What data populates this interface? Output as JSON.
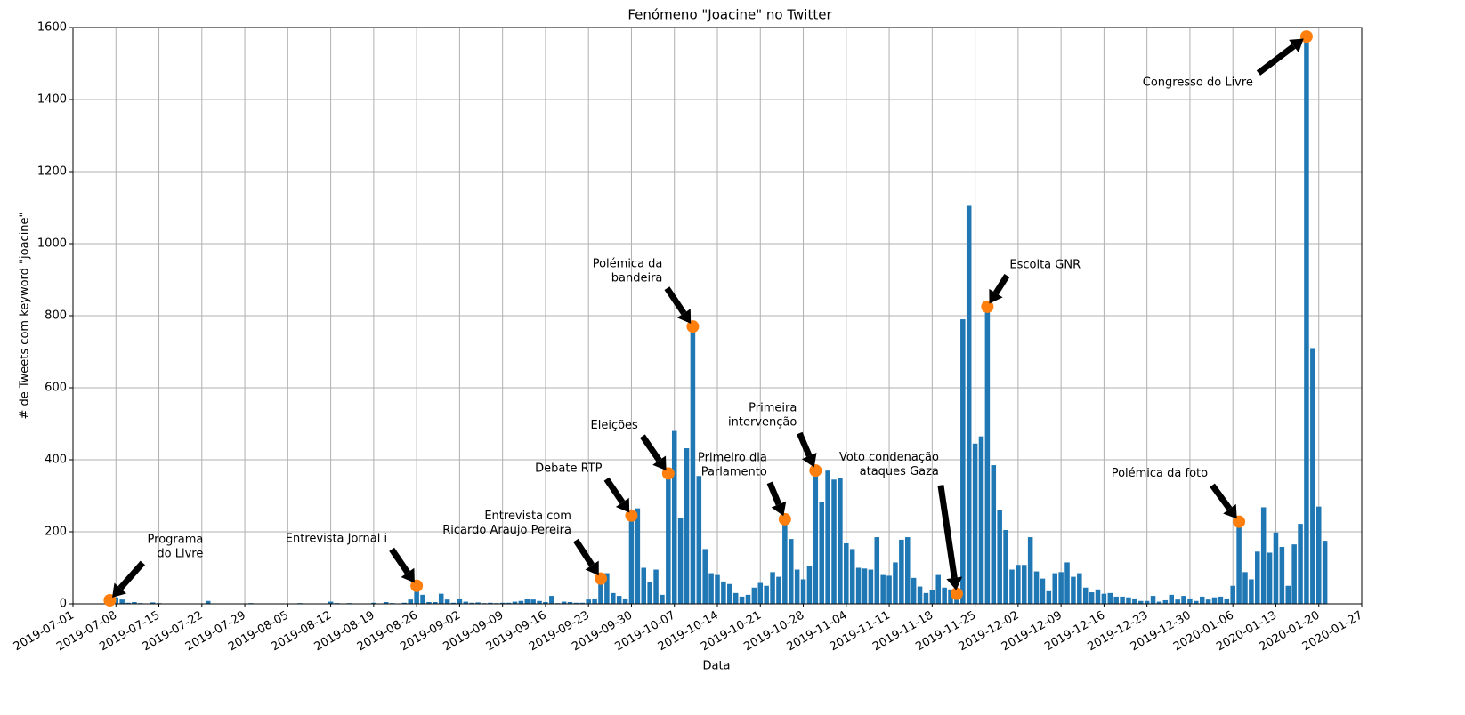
{
  "chart_data": {
    "type": "bar",
    "title": "Fenómeno \"Joacine\" no Twitter",
    "xlabel": "Data",
    "ylabel": "# de Tweets com keyword \"joacine\"",
    "color": "#1f77b4",
    "grid": true,
    "xlim": [
      "2019-07-01",
      "2020-01-27"
    ],
    "xticks": [
      "2019-07-01",
      "2019-07-08",
      "2019-07-15",
      "2019-07-22",
      "2019-07-29",
      "2019-08-05",
      "2019-08-12",
      "2019-08-19",
      "2019-08-26",
      "2019-09-02",
      "2019-09-09",
      "2019-09-16",
      "2019-09-23",
      "2019-09-30",
      "2019-10-07",
      "2019-10-14",
      "2019-10-21",
      "2019-10-28",
      "2019-11-04",
      "2019-11-11",
      "2019-11-18",
      "2019-11-25",
      "2019-12-02",
      "2019-12-09",
      "2019-12-16",
      "2019-12-23",
      "2019-12-30",
      "2020-01-06",
      "2020-01-13",
      "2020-01-20",
      "2020-01-27"
    ],
    "ylim": [
      0,
      1600
    ],
    "yticks": [
      0,
      200,
      400,
      600,
      800,
      1000,
      1200,
      1400,
      1600
    ],
    "x": [
      "2019-07-07",
      "2019-07-08",
      "2019-07-09",
      "2019-07-10",
      "2019-07-11",
      "2019-07-12",
      "2019-07-13",
      "2019-07-14",
      "2019-07-15",
      "2019-07-16",
      "2019-07-17",
      "2019-07-18",
      "2019-07-19",
      "2019-07-20",
      "2019-07-21",
      "2019-07-22",
      "2019-07-23",
      "2019-07-24",
      "2019-07-25",
      "2019-07-26",
      "2019-07-27",
      "2019-07-28",
      "2019-07-29",
      "2019-07-30",
      "2019-07-31",
      "2019-08-01",
      "2019-08-02",
      "2019-08-03",
      "2019-08-04",
      "2019-08-05",
      "2019-08-06",
      "2019-08-07",
      "2019-08-08",
      "2019-08-09",
      "2019-08-10",
      "2019-08-11",
      "2019-08-12",
      "2019-08-13",
      "2019-08-14",
      "2019-08-15",
      "2019-08-16",
      "2019-08-17",
      "2019-08-18",
      "2019-08-19",
      "2019-08-20",
      "2019-08-21",
      "2019-08-22",
      "2019-08-23",
      "2019-08-24",
      "2019-08-25",
      "2019-08-26",
      "2019-08-27",
      "2019-08-28",
      "2019-08-29",
      "2019-08-30",
      "2019-08-31",
      "2019-09-01",
      "2019-09-02",
      "2019-09-03",
      "2019-09-04",
      "2019-09-05",
      "2019-09-06",
      "2019-09-07",
      "2019-09-08",
      "2019-09-09",
      "2019-09-10",
      "2019-09-11",
      "2019-09-12",
      "2019-09-13",
      "2019-09-14",
      "2019-09-15",
      "2019-09-16",
      "2019-09-17",
      "2019-09-18",
      "2019-09-19",
      "2019-09-20",
      "2019-09-21",
      "2019-09-22",
      "2019-09-23",
      "2019-09-24",
      "2019-09-25",
      "2019-09-26",
      "2019-09-27",
      "2019-09-28",
      "2019-09-29",
      "2019-09-30",
      "2019-10-01",
      "2019-10-02",
      "2019-10-03",
      "2019-10-04",
      "2019-10-05",
      "2019-10-06",
      "2019-10-07",
      "2019-10-08",
      "2019-10-09",
      "2019-10-10",
      "2019-10-11",
      "2019-10-12",
      "2019-10-13",
      "2019-10-14",
      "2019-10-15",
      "2019-10-16",
      "2019-10-17",
      "2019-10-18",
      "2019-10-19",
      "2019-10-20",
      "2019-10-21",
      "2019-10-22",
      "2019-10-23",
      "2019-10-24",
      "2019-10-25",
      "2019-10-26",
      "2019-10-27",
      "2019-10-28",
      "2019-10-29",
      "2019-10-30",
      "2019-10-31",
      "2019-11-01",
      "2019-11-02",
      "2019-11-03",
      "2019-11-04",
      "2019-11-05",
      "2019-11-06",
      "2019-11-07",
      "2019-11-08",
      "2019-11-09",
      "2019-11-10",
      "2019-11-11",
      "2019-11-12",
      "2019-11-13",
      "2019-11-14",
      "2019-11-15",
      "2019-11-16",
      "2019-11-17",
      "2019-11-18",
      "2019-11-19",
      "2019-11-20",
      "2019-11-21",
      "2019-11-22",
      "2019-11-23",
      "2019-11-24",
      "2019-11-25",
      "2019-11-26",
      "2019-11-27",
      "2019-11-28",
      "2019-11-29",
      "2019-11-30",
      "2019-12-01",
      "2019-12-02",
      "2019-12-03",
      "2019-12-04",
      "2019-12-05",
      "2019-12-06",
      "2019-12-07",
      "2019-12-08",
      "2019-12-09",
      "2019-12-10",
      "2019-12-11",
      "2019-12-12",
      "2019-12-13",
      "2019-12-14",
      "2019-12-15",
      "2019-12-16",
      "2019-12-17",
      "2019-12-18",
      "2019-12-19",
      "2019-12-20",
      "2019-12-21",
      "2019-12-22",
      "2019-12-23",
      "2019-12-24",
      "2019-12-25",
      "2019-12-26",
      "2019-12-27",
      "2019-12-28",
      "2019-12-29",
      "2019-12-30",
      "2019-12-31",
      "2020-01-01",
      "2020-01-02",
      "2020-01-03",
      "2020-01-04",
      "2020-01-05",
      "2020-01-06",
      "2020-01-07",
      "2020-01-08",
      "2020-01-09",
      "2020-01-10",
      "2020-01-11",
      "2020-01-12",
      "2020-01-13",
      "2020-01-14",
      "2020-01-15",
      "2020-01-16",
      "2020-01-17",
      "2020-01-18",
      "2020-01-19",
      "2020-01-20",
      "2020-01-21"
    ],
    "values": [
      10,
      18,
      12,
      3,
      5,
      2,
      1,
      4,
      2,
      1,
      1,
      0,
      1,
      1,
      0,
      0,
      8,
      1,
      0,
      0,
      1,
      0,
      0,
      2,
      0,
      0,
      0,
      1,
      0,
      0,
      1,
      2,
      1,
      0,
      0,
      0,
      6,
      2,
      1,
      2,
      1,
      0,
      1,
      3,
      1,
      5,
      2,
      1,
      3,
      12,
      50,
      25,
      5,
      5,
      28,
      12,
      3,
      15,
      6,
      3,
      4,
      2,
      3,
      2,
      3,
      3,
      6,
      8,
      14,
      12,
      8,
      5,
      22,
      2,
      6,
      5,
      3,
      3,
      12,
      15,
      70,
      85,
      30,
      22,
      15,
      245,
      265,
      100,
      60,
      95,
      25,
      362,
      480,
      237,
      432,
      770,
      355,
      152,
      85,
      80,
      62,
      55,
      30,
      20,
      25,
      45,
      58,
      50,
      88,
      75,
      235,
      180,
      95,
      68,
      105,
      370,
      282,
      370,
      345,
      350,
      168,
      152,
      100,
      98,
      95,
      185,
      80,
      78,
      115,
      178,
      185,
      72,
      48,
      30,
      38,
      80,
      45,
      40,
      28,
      790,
      1105,
      445,
      465,
      825,
      385,
      260,
      205,
      95,
      108,
      108,
      185,
      90,
      70,
      35,
      85,
      88,
      115,
      75,
      85,
      45,
      32,
      40,
      28,
      30,
      20,
      20,
      18,
      15,
      8,
      8,
      22,
      6,
      10,
      25,
      12,
      22,
      15,
      8,
      20,
      12,
      18,
      20,
      15,
      50,
      228,
      88,
      68,
      145,
      268,
      142,
      198,
      158,
      50,
      165,
      222,
      1575,
      710,
      270,
      175
    ],
    "highlight_color": "#ff7f0e",
    "annotations": [
      {
        "text": [
          "Programa",
          "do Livre"
        ],
        "x": "2019-07-07",
        "y": 10
      },
      {
        "text": [
          "Entrevista Jornal i"
        ],
        "x": "2019-08-26",
        "y": 50
      },
      {
        "text": [
          "Entrevista com",
          "Ricardo Araujo Pereira"
        ],
        "x": "2019-09-25",
        "y": 70
      },
      {
        "text": [
          "Debate RTP"
        ],
        "x": "2019-09-30",
        "y": 245
      },
      {
        "text": [
          "Eleições"
        ],
        "x": "2019-10-06",
        "y": 362
      },
      {
        "text": [
          "Polémica da",
          "bandeira"
        ],
        "x": "2019-10-10",
        "y": 770
      },
      {
        "text": [
          "Primeiro dia",
          "Parlamento"
        ],
        "x": "2019-10-25",
        "y": 235
      },
      {
        "text": [
          "Primeira",
          "intervenção"
        ],
        "x": "2019-10-30",
        "y": 370
      },
      {
        "text": [
          "Voto condenação",
          "ataques Gaza"
        ],
        "x": "2019-11-22",
        "y": 28
      },
      {
        "text": [
          "Escolta GNR"
        ],
        "x": "2019-11-27",
        "y": 825
      },
      {
        "text": [
          "Polémica da foto"
        ],
        "x": "2020-01-07",
        "y": 228
      },
      {
        "text": [
          "Congresso do Livre"
        ],
        "x": "2020-01-18",
        "y": 1575
      }
    ]
  }
}
